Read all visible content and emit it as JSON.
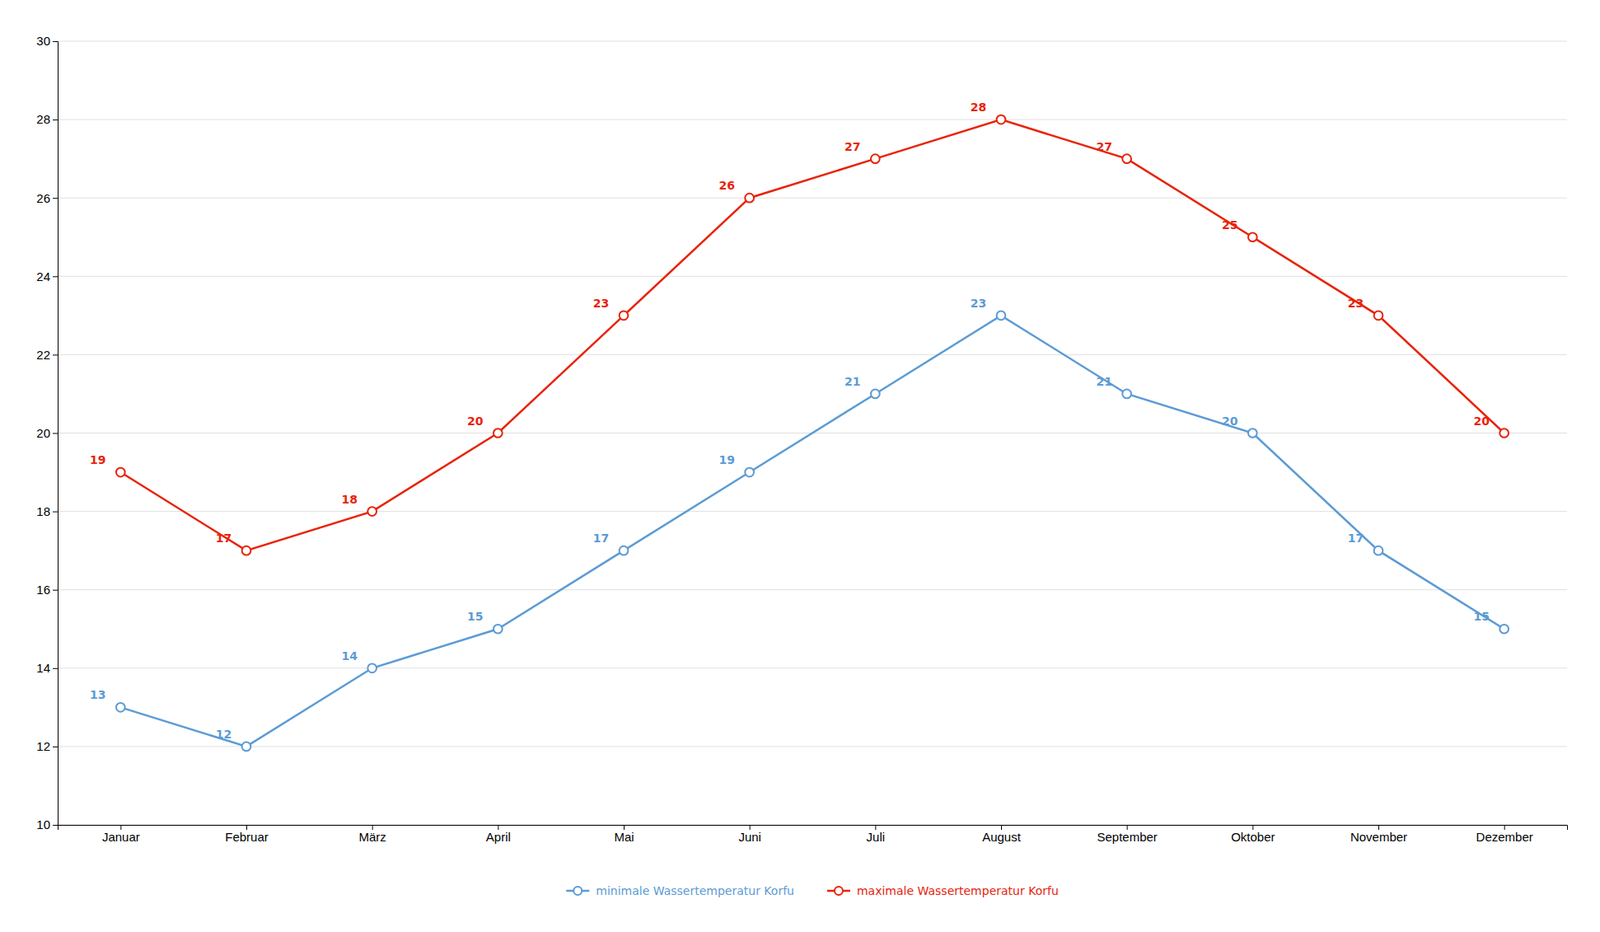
{
  "chart_data": {
    "type": "line",
    "categories": [
      "Januar",
      "Februar",
      "März",
      "April",
      "Mai",
      "Juni",
      "Juli",
      "August",
      "September",
      "Oktober",
      "November",
      "Dezember"
    ],
    "series": [
      {
        "name": "minimale Wassertemperatur Korfu",
        "color": "#5B9BD5",
        "marker": "circle",
        "values": [
          13,
          12,
          14,
          15,
          17,
          19,
          21,
          23,
          21,
          20,
          17,
          15
        ]
      },
      {
        "name": "maximale Wassertemperatur Korfu",
        "color": "#E8230A",
        "marker": "circle",
        "values": [
          19,
          17,
          18,
          20,
          23,
          26,
          27,
          28,
          27,
          25,
          23,
          20
        ]
      }
    ],
    "ylim": [
      10,
      30
    ],
    "yticks": [
      10,
      12,
      14,
      16,
      18,
      20,
      22,
      24,
      26,
      28,
      30
    ],
    "grid": true,
    "legend": "bottom",
    "data_labels": true
  }
}
